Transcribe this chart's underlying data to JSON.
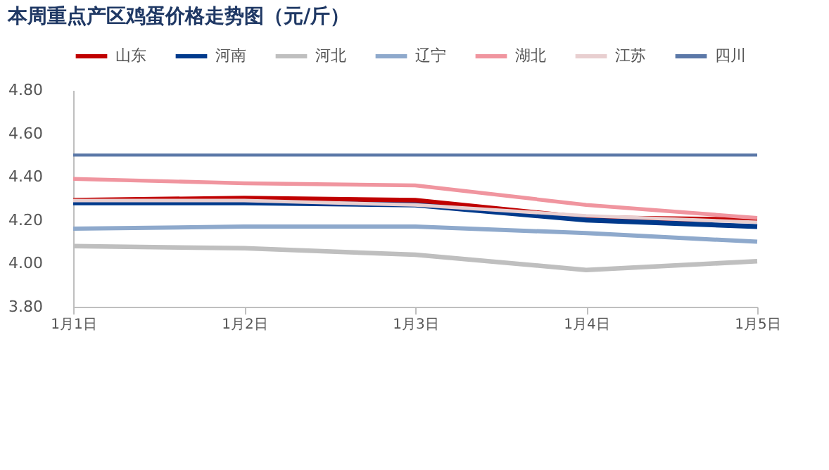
{
  "chart_data": {
    "type": "line",
    "title": "本周重点产区鸡蛋价格走势图（元/斤）",
    "categories": [
      "1月1日",
      "1月2日",
      "1月3日",
      "1月4日",
      "1月5日"
    ],
    "series": [
      {
        "name": "山东",
        "color": "#c00000",
        "values": [
          4.29,
          4.3,
          4.29,
          4.21,
          4.2
        ]
      },
      {
        "name": "河南",
        "color": "#003a8c",
        "values": [
          4.28,
          4.28,
          4.27,
          4.2,
          4.17
        ]
      },
      {
        "name": "河北",
        "color": "#bfbfbf",
        "values": [
          4.08,
          4.07,
          4.04,
          3.97,
          4.01
        ]
      },
      {
        "name": "辽宁",
        "color": "#8ea9cc",
        "values": [
          4.16,
          4.17,
          4.17,
          4.14,
          4.1
        ]
      },
      {
        "name": "湖北",
        "color": "#f0959f",
        "values": [
          4.39,
          4.37,
          4.36,
          4.27,
          4.21
        ]
      },
      {
        "name": "江苏",
        "color": "#e8cfd0",
        "values": [
          4.29,
          4.29,
          4.27,
          4.22,
          4.19
        ]
      },
      {
        "name": "四川",
        "color": "#5b78a8",
        "values": [
          4.5,
          4.5,
          4.5,
          4.5,
          4.5
        ]
      }
    ],
    "ylim": [
      3.8,
      4.8
    ],
    "yticks": [
      {
        "value": 3.8,
        "label": "3.80"
      },
      {
        "value": 4.0,
        "label": "4.00"
      },
      {
        "value": 4.2,
        "label": "4.20"
      },
      {
        "value": 4.4,
        "label": "4.40"
      },
      {
        "value": 4.6,
        "label": "4.60"
      },
      {
        "value": 4.8,
        "label": "4.80"
      }
    ],
    "grid": false,
    "legend": "top",
    "marker": "none",
    "line_style": "solid"
  }
}
